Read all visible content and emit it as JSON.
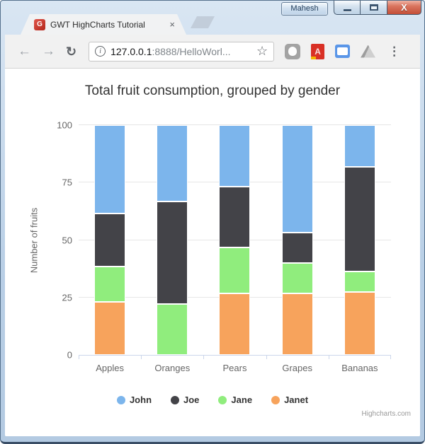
{
  "window": {
    "profile_label": "Mahesh"
  },
  "icons": {
    "close": "X",
    "tab_close": "×",
    "back": "←",
    "forward": "→",
    "refresh": "↻",
    "info": "i",
    "star": "☆",
    "menu": "⋮",
    "favicon_letter": "G"
  },
  "browser": {
    "tab_title": "GWT HighCharts Tutorial",
    "url_host": "127.0.0.1",
    "url_path": ":8888/HelloWorl..."
  },
  "chart_data": {
    "type": "bar",
    "subtype": "stacked-percent-column",
    "title": "Total fruit consumption, grouped by gender",
    "xlabel": "",
    "ylabel": "Number of fruits",
    "categories": [
      "Apples",
      "Oranges",
      "Pears",
      "Grapes",
      "Bananas"
    ],
    "series": [
      {
        "name": "John",
        "color": "#7cb5ec",
        "values": [
          5,
          3,
          4,
          7,
          2
        ]
      },
      {
        "name": "Joe",
        "color": "#434348",
        "values": [
          3,
          4,
          4,
          2,
          5
        ]
      },
      {
        "name": "Jane",
        "color": "#90ed7d",
        "values": [
          2,
          2,
          3,
          2,
          1
        ]
      },
      {
        "name": "Janet",
        "color": "#f7a35c",
        "values": [
          3,
          0,
          4,
          4,
          3
        ]
      }
    ],
    "stack_bottom_to_top": [
      "Janet",
      "Jane",
      "Joe",
      "John"
    ],
    "yticks": [
      0,
      25,
      50,
      75,
      100
    ],
    "ylim": [
      0,
      100
    ],
    "grid": true,
    "legend_position": "bottom",
    "credits": "Highcharts.com"
  }
}
